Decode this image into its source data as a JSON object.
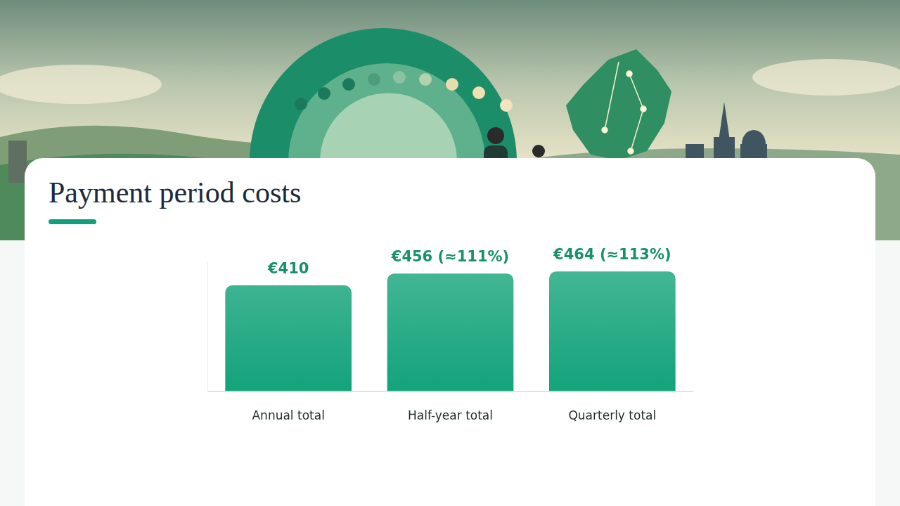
{
  "chart_data": {
    "type": "bar",
    "title": "Payment period costs",
    "categories": [
      "Annual total",
      "Half-year total",
      "Quarterly total"
    ],
    "values": [
      410,
      456,
      464
    ],
    "value_labels": [
      "€410",
      "€456 (≈111%)",
      "€464 (≈113%)"
    ],
    "color": "#13a37a",
    "ylim": [
      0,
      500
    ],
    "grid": false,
    "data_labels": true,
    "tick_labels": "x"
  }
}
